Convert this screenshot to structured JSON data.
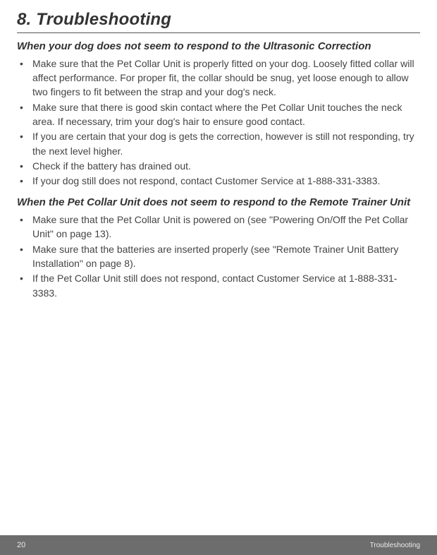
{
  "title": "8. Troubleshooting",
  "sections": [
    {
      "heading": "When your dog does not seem to respond to the Ultrasonic Correction",
      "items": [
        "Make sure that the Pet Collar Unit is properly fitted on your dog. Loosely fitted collar will affect performance. For proper fit, the collar should be snug, yet loose enough to allow two fingers to fit between the strap and your dog's neck.",
        "Make sure that there is good skin contact where the Pet Collar Unit touches the neck area. If necessary, trim your dog's hair to ensure good contact.",
        "If you are certain that your dog is gets the correction, however is still not responding, try the next level higher.",
        "Check if the battery has drained out.",
        "If your dog still does not respond, contact Customer Service at 1-888-331-3383."
      ]
    },
    {
      "heading": "When the Pet Collar Unit does not seem to respond to the Remote Trainer Unit",
      "items": [
        "Make sure that the Pet Collar Unit is powered on (see \"Powering On/Off the Pet Collar Unit\" on page 13).",
        "Make sure that the batteries are inserted properly (see \"Remote Trainer Unit Battery Installation\" on page 8).",
        "If the Pet Collar Unit still does not respond, contact Customer Service at 1-888-331-3383."
      ]
    }
  ],
  "footer": {
    "page": "20",
    "label": "Troubleshooting"
  },
  "colors": {
    "text": "#3a3a3a",
    "heading": "#333333",
    "footer_bg": "#6d6d6d",
    "footer_text": "#eaeaea",
    "rule": "#555555"
  },
  "typography": {
    "title_fontsize": 24,
    "heading_fontsize": 15,
    "body_fontsize": 14,
    "footer_fontsize": 10
  }
}
